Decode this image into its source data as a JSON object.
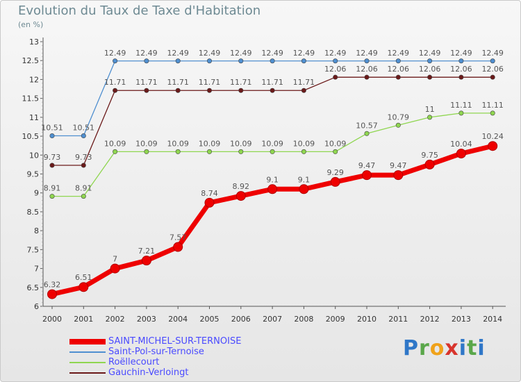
{
  "header": {
    "title": "Evolution du Taux de Taxe d'Habitation",
    "subtitle": "(en %)"
  },
  "brand": {
    "text": "Proxiti"
  },
  "chart_data": {
    "type": "line",
    "title": "Evolution du Taux de Taxe d'Habitation",
    "ylabel": "(en %)",
    "xlabel": "",
    "x": [
      2000,
      2001,
      2002,
      2003,
      2004,
      2005,
      2006,
      2007,
      2008,
      2009,
      2010,
      2011,
      2012,
      2013,
      2014
    ],
    "ylim": [
      6,
      13
    ],
    "yticks": [
      6,
      6.5,
      7,
      7.5,
      8,
      8.5,
      9,
      9.5,
      10,
      10.5,
      11,
      11.5,
      12,
      12.5,
      13
    ],
    "grid": false,
    "legend_position": "bottom-left",
    "series": [
      {
        "name": "Saint-Pol-sur-Ternoise",
        "color": "#4f8fd0",
        "values": [
          10.51,
          10.51,
          12.49,
          12.49,
          12.49,
          12.49,
          12.49,
          12.49,
          12.49,
          12.49,
          12.49,
          12.49,
          12.49,
          12.49,
          12.49
        ],
        "labels": [
          "10.51",
          "10.51",
          "12.49",
          "12.49",
          "12.49",
          "12.49",
          "12.49",
          "12.49",
          "12.49",
          "12.49",
          "12.49",
          "12.49",
          "12.49",
          "12.49",
          "12.49"
        ]
      },
      {
        "name": "Gauchin-Verloingt",
        "color": "#6b1a1a",
        "values": [
          9.73,
          9.73,
          11.71,
          11.71,
          11.71,
          11.71,
          11.71,
          11.71,
          11.71,
          12.06,
          12.06,
          12.06,
          12.06,
          12.06,
          12.06
        ],
        "labels": [
          "9.73",
          "9.73",
          "11.71",
          "11.71",
          "11.71",
          "11.71",
          "11.71",
          "11.71",
          "11.71",
          "12.06",
          "12.06",
          "12.06",
          "12.06",
          "12.06",
          "12.06"
        ]
      },
      {
        "name": "Roëllecourt",
        "color": "#8fd650",
        "values": [
          8.91,
          8.91,
          10.09,
          10.09,
          10.09,
          10.09,
          10.09,
          10.09,
          10.09,
          10.09,
          10.57,
          10.79,
          11,
          11.11,
          11.11
        ],
        "labels": [
          "8.91",
          "8.91",
          "10.09",
          "10.09",
          "10.09",
          "10.09",
          "10.09",
          "10.09",
          "10.09",
          "10.09",
          "10.57",
          "10.79",
          "11",
          "11.11",
          "11.11"
        ]
      },
      {
        "name": "SAINT-MICHEL-SUR-TERNOISE",
        "color": "#ee0000",
        "values": [
          6.32,
          6.51,
          7,
          7.21,
          7.57,
          8.74,
          8.92,
          9.1,
          9.1,
          9.29,
          9.47,
          9.47,
          9.75,
          10.04,
          10.24
        ],
        "labels": [
          "6.32",
          "6.51",
          "7",
          "7.21",
          "7.57",
          "8.74",
          "8.92",
          "9.1",
          "9.1",
          "9.29",
          "9.47",
          "9.47",
          "9.75",
          "10.04",
          "10.24"
        ]
      }
    ]
  }
}
